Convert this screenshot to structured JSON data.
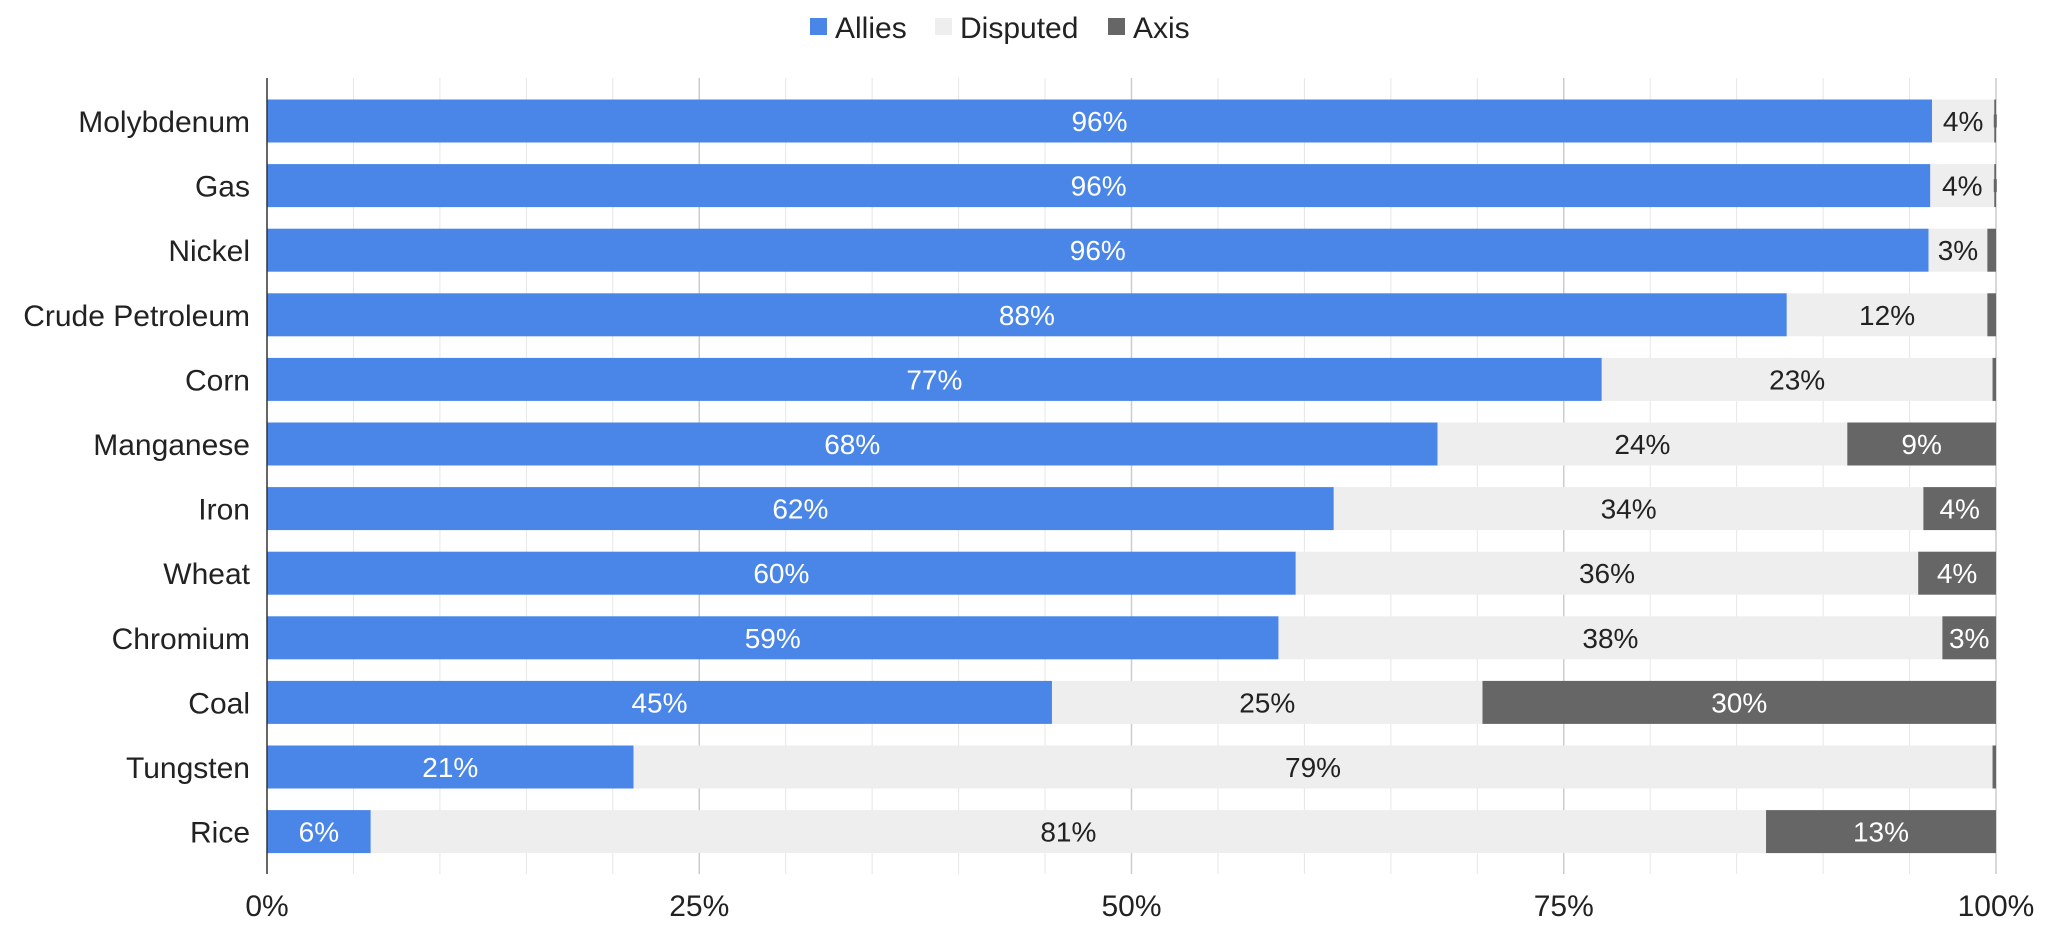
{
  "chart_data": {
    "type": "bar",
    "orientation": "horizontal",
    "stacking": "percent",
    "legend_position": "top",
    "grid": true,
    "xlim": [
      0,
      100
    ],
    "x_ticks": [
      "0%",
      "25%",
      "50%",
      "75%",
      "100%"
    ],
    "categories": [
      "Molybdenum",
      "Gas",
      "Nickel",
      "Crude Petroleum",
      "Corn",
      "Manganese",
      "Iron",
      "Wheat",
      "Chromium",
      "Coal",
      "Tungsten",
      "Rice"
    ],
    "series": [
      {
        "name": "Allies",
        "color": "#4a86e8",
        "values": [
          96.3,
          96.2,
          96.1,
          87.9,
          77.2,
          67.7,
          61.7,
          59.5,
          58.5,
          45.4,
          21.2,
          6.0
        ],
        "labels": [
          "96%",
          "96%",
          "96%",
          "88%",
          "77%",
          "68%",
          "62%",
          "60%",
          "59%",
          "45%",
          "21%",
          "6%"
        ]
      },
      {
        "name": "Disputed",
        "color": "#eeeeee",
        "values": [
          3.6,
          3.7,
          3.4,
          11.6,
          22.6,
          23.7,
          34.1,
          36.0,
          38.4,
          24.9,
          78.6,
          80.7
        ],
        "labels": [
          "4%",
          "4%",
          "3%",
          "12%",
          "23%",
          "24%",
          "34%",
          "36%",
          "38%",
          "25%",
          "79%",
          "81%"
        ]
      },
      {
        "name": "Axis",
        "color": "#666666",
        "values": [
          0.1,
          0.1,
          0.5,
          0.5,
          0.2,
          8.6,
          4.2,
          4.5,
          3.1,
          29.7,
          0.2,
          13.3
        ],
        "labels": [
          "",
          "",
          "",
          "",
          "",
          "9%",
          "4%",
          "4%",
          "3%",
          "30%",
          "",
          "13%"
        ]
      }
    ]
  }
}
